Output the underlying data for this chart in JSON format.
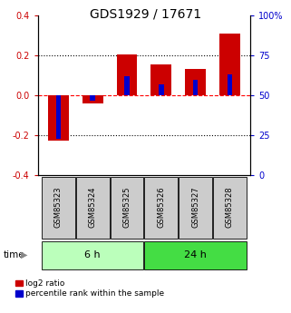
{
  "title": "GDS1929 / 17671",
  "samples": [
    "GSM85323",
    "GSM85324",
    "GSM85325",
    "GSM85326",
    "GSM85327",
    "GSM85328"
  ],
  "log2_ratio": [
    -0.225,
    -0.04,
    0.205,
    0.155,
    0.135,
    0.31
  ],
  "percentile_rank": [
    23,
    47,
    62,
    57,
    60,
    63
  ],
  "groups": [
    {
      "label": "6 h",
      "indices": [
        0,
        1,
        2
      ],
      "color": "#bbffbb"
    },
    {
      "label": "24 h",
      "indices": [
        3,
        4,
        5
      ],
      "color": "#44dd44"
    }
  ],
  "ylim": [
    -0.4,
    0.4
  ],
  "yticks_left": [
    -0.4,
    -0.2,
    0.0,
    0.2,
    0.4
  ],
  "yticks_right": [
    0,
    25,
    50,
    75,
    100
  ],
  "hlines": [
    -0.2,
    0.0,
    0.2
  ],
  "hline_styles": [
    "dotted",
    "dashed_red",
    "dotted"
  ],
  "bar_width": 0.6,
  "bar_color_log2": "#cc0000",
  "bar_color_pct": "#0000cc",
  "pct_bar_width": 0.15,
  "background_color": "#ffffff",
  "left_label_color": "#cc0000",
  "right_label_color": "#0000cc",
  "sample_box_color": "#cccccc",
  "time_label": "time",
  "legend_log2": "log2 ratio",
  "legend_pct": "percentile rank within the sample",
  "title_fontsize": 10,
  "tick_fontsize": 7,
  "sample_fontsize": 6,
  "group_fontsize": 8
}
